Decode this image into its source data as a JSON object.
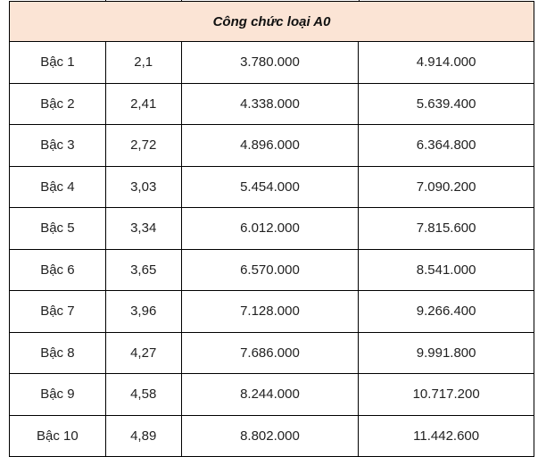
{
  "header": {
    "title": "Công chức loại A0",
    "background": "#fbe4d5"
  },
  "rows": [
    [
      "Bậc 1",
      "2,1",
      "3.780.000",
      "4.914.000"
    ],
    [
      "Bậc 2",
      "2,41",
      "4.338.000",
      "5.639.400"
    ],
    [
      "Bậc 3",
      "2,72",
      "4.896.000",
      "6.364.800"
    ],
    [
      "Bậc 4",
      "3,03",
      "5.454.000",
      "7.090.200"
    ],
    [
      "Bậc 5",
      "3,34",
      "6.012.000",
      "7.815.600"
    ],
    [
      "Bậc 6",
      "3,65",
      "6.570.000",
      "8.541.000"
    ],
    [
      "Bậc 7",
      "3,96",
      "7.128.000",
      "9.266.400"
    ],
    [
      "Bậc 8",
      "4,27",
      "7.686.000",
      "9.991.800"
    ],
    [
      "Bậc 9",
      "4,58",
      "8.244.000",
      "10.717.200"
    ],
    [
      "Bậc 10",
      "4,89",
      "8.802.000",
      "11.442.600"
    ]
  ]
}
